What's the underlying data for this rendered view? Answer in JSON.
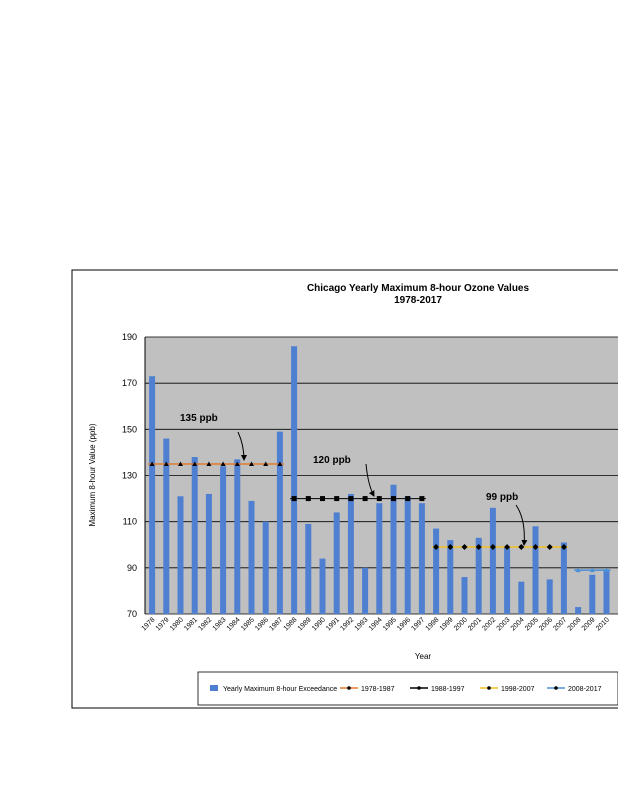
{
  "chart_data": {
    "type": "bar",
    "title": "Chicago Yearly Maximum 8-hour Ozone Values",
    "subtitle": "1978-2017",
    "x_label": "Year",
    "y_label": "Maximum 8-hour Value (ppb)",
    "annotations": [
      "135 ppb",
      "120 ppb",
      "99 ppb"
    ],
    "categories": [
      "1978",
      "1979",
      "1980",
      "1981",
      "1982",
      "1983",
      "1984",
      "1985",
      "1986",
      "1987",
      "1988",
      "1989",
      "1990",
      "1991",
      "1992",
      "1993",
      "1994",
      "1995",
      "1996",
      "1997",
      "1998",
      "1999",
      "2000",
      "2001",
      "2002",
      "2003",
      "2004",
      "2005",
      "2006",
      "2007",
      "2008",
      "2009",
      "2010"
    ],
    "series": [
      {
        "name": "Yearly Maximum 8-hour Exceedance",
        "type": "bar",
        "color": "#4f7fd0",
        "values": [
          173,
          146,
          121,
          138,
          122,
          134,
          137,
          119,
          110,
          149,
          186,
          109,
          94,
          114,
          122,
          90,
          118,
          126,
          121,
          118,
          107,
          102,
          86,
          103,
          116,
          99,
          84,
          108,
          85,
          101,
          73,
          87,
          89
        ]
      },
      {
        "name": "1978-1987",
        "type": "line",
        "color": "#e07a2e",
        "marker": "triangle",
        "values": [
          135,
          135,
          135,
          135,
          135,
          135,
          135,
          135,
          135,
          135,
          null,
          null,
          null,
          null,
          null,
          null,
          null,
          null,
          null,
          null,
          null,
          null,
          null,
          null,
          null,
          null,
          null,
          null,
          null,
          null,
          null,
          null,
          null
        ]
      },
      {
        "name": "1988-1997",
        "type": "line",
        "color": "#000000",
        "marker": "square",
        "values": [
          null,
          null,
          null,
          null,
          null,
          null,
          null,
          null,
          null,
          null,
          120,
          120,
          120,
          120,
          120,
          120,
          120,
          120,
          120,
          120,
          null,
          null,
          null,
          null,
          null,
          null,
          null,
          null,
          null,
          null,
          null,
          null,
          null
        ]
      },
      {
        "name": "1998-2007",
        "type": "line",
        "color": "#f0c020",
        "marker": "diamond",
        "values": [
          null,
          null,
          null,
          null,
          null,
          null,
          null,
          null,
          null,
          null,
          null,
          null,
          null,
          null,
          null,
          null,
          null,
          null,
          null,
          null,
          99,
          99,
          99,
          99,
          99,
          99,
          99,
          99,
          99,
          99,
          null,
          null,
          null
        ]
      },
      {
        "name": "2008-2017",
        "type": "line",
        "color": "#4a8fd8",
        "marker": "triangle",
        "values": [
          null,
          null,
          null,
          null,
          null,
          null,
          null,
          null,
          null,
          null,
          null,
          null,
          null,
          null,
          null,
          null,
          null,
          null,
          null,
          null,
          null,
          null,
          null,
          null,
          null,
          null,
          null,
          null,
          null,
          null,
          89,
          89,
          89
        ]
      }
    ],
    "ylim": [
      70,
      190
    ],
    "yticks": [
      70,
      90,
      110,
      130,
      150,
      170,
      190
    ],
    "grid": true
  }
}
